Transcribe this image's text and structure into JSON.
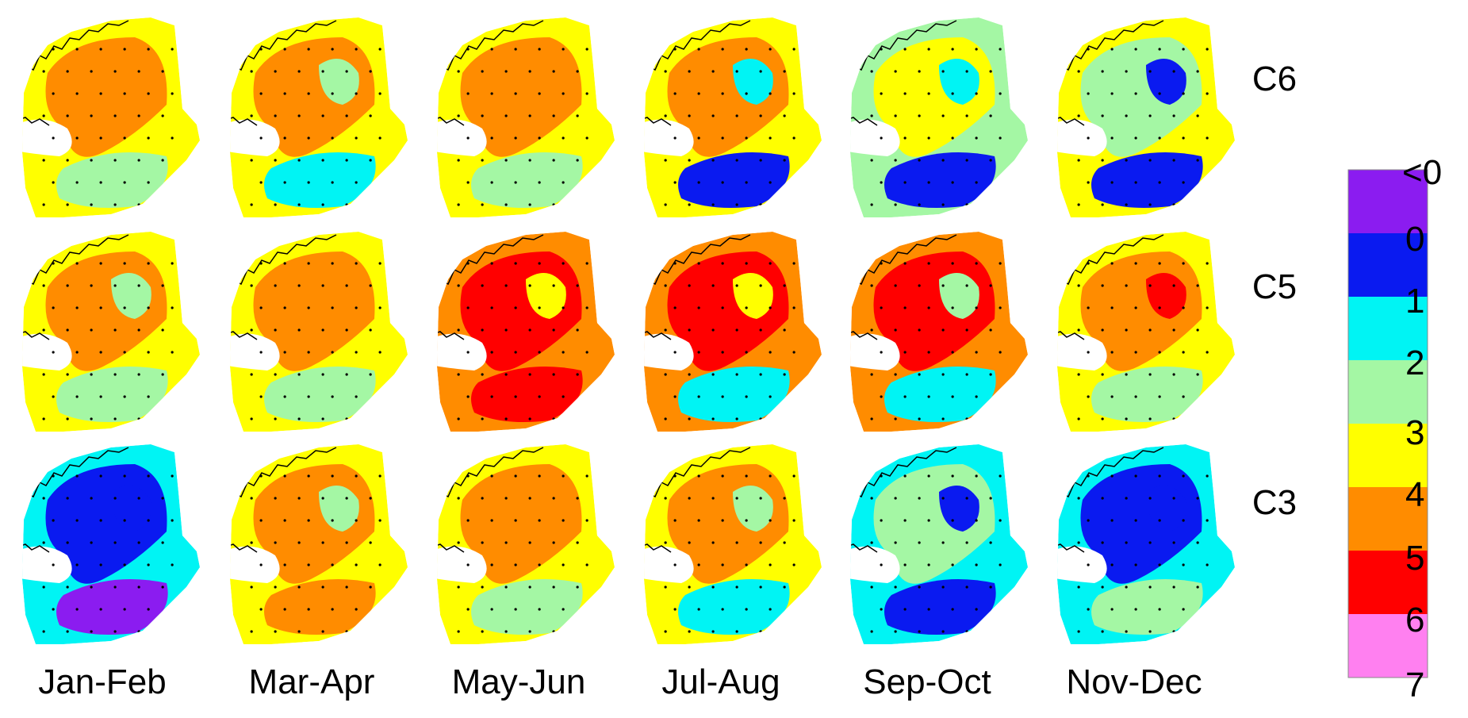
{
  "figure": {
    "columns": [
      "Jan-Feb",
      "Mar-Apr",
      "May-Jun",
      "Jul-Aug",
      "Sep-Oct",
      "Nov-Dec"
    ],
    "rows": [
      "C6",
      "C5",
      "C3"
    ]
  },
  "legend": {
    "tick_labels": [
      "<0",
      "0",
      "1",
      "2",
      "3",
      "4",
      "5",
      "6",
      "7"
    ],
    "bands": [
      {
        "label": "<0",
        "color": "#8b1cf0"
      },
      {
        "label": "0-1",
        "color": "#0a1af0"
      },
      {
        "label": "1-2",
        "color": "#00f4f4"
      },
      {
        "label": "2-3",
        "color": "#a4f7a4"
      },
      {
        "label": "3-4",
        "color": "#ffff00"
      },
      {
        "label": "4-5",
        "color": "#ff8c00"
      },
      {
        "label": "5-6",
        "color": "#ff0000"
      },
      {
        "label": "6-7",
        "color": "#ff80f0"
      }
    ]
  },
  "panels": [
    {
      "row": "C6",
      "column": "Jan-Feb",
      "base": "#ffff00",
      "patches": [
        "#ff8c00",
        "#ff8c00",
        "#a4f7a4",
        "#0a1af0"
      ]
    },
    {
      "row": "C6",
      "column": "Mar-Apr",
      "base": "#ffff00",
      "patches": [
        "#ff8c00",
        "#a4f7a4",
        "#00f4f4",
        "#ff8c00"
      ]
    },
    {
      "row": "C6",
      "column": "May-Jun",
      "base": "#ffff00",
      "patches": [
        "#ff8c00",
        "#ff8c00",
        "#a4f7a4",
        "#0a1af0"
      ]
    },
    {
      "row": "C6",
      "column": "Jul-Aug",
      "base": "#ffff00",
      "patches": [
        "#ff8c00",
        "#00f4f4",
        "#0a1af0",
        "#a4f7a4"
      ]
    },
    {
      "row": "C6",
      "column": "Sep-Oct",
      "base": "#a4f7a4",
      "patches": [
        "#ffff00",
        "#00f4f4",
        "#0a1af0",
        "#ffff00"
      ]
    },
    {
      "row": "C6",
      "column": "Nov-Dec",
      "base": "#ffff00",
      "patches": [
        "#a4f7a4",
        "#0a1af0",
        "#0a1af0",
        "#ff8c00"
      ]
    },
    {
      "row": "C5",
      "column": "Jan-Feb",
      "base": "#ffff00",
      "patches": [
        "#ff8c00",
        "#a4f7a4",
        "#a4f7a4",
        "#0a1af0"
      ]
    },
    {
      "row": "C5",
      "column": "Mar-Apr",
      "base": "#ffff00",
      "patches": [
        "#ff8c00",
        "#ff8c00",
        "#a4f7a4",
        "#ff8c00"
      ]
    },
    {
      "row": "C5",
      "column": "May-Jun",
      "base": "#ff8c00",
      "patches": [
        "#ff0000",
        "#ffff00",
        "#ff0000",
        "#ff8c00"
      ]
    },
    {
      "row": "C5",
      "column": "Jul-Aug",
      "base": "#ff8c00",
      "patches": [
        "#ff0000",
        "#ffff00",
        "#00f4f4",
        "#ff8c00"
      ]
    },
    {
      "row": "C5",
      "column": "Sep-Oct",
      "base": "#ff8c00",
      "patches": [
        "#ff0000",
        "#a4f7a4",
        "#00f4f4",
        "#ffff00"
      ]
    },
    {
      "row": "C5",
      "column": "Nov-Dec",
      "base": "#ffff00",
      "patches": [
        "#ff8c00",
        "#ff0000",
        "#a4f7a4",
        "#00f4f4"
      ]
    },
    {
      "row": "C3",
      "column": "Jan-Feb",
      "base": "#00f4f4",
      "patches": [
        "#0a1af0",
        "#0a1af0",
        "#8b1cf0",
        "#a4f7a4"
      ]
    },
    {
      "row": "C3",
      "column": "Mar-Apr",
      "base": "#ffff00",
      "patches": [
        "#ff8c00",
        "#a4f7a4",
        "#ff8c00",
        "#ff8c00"
      ]
    },
    {
      "row": "C3",
      "column": "May-Jun",
      "base": "#ffff00",
      "patches": [
        "#ff8c00",
        "#ff8c00",
        "#a4f7a4",
        "#ff8c00"
      ]
    },
    {
      "row": "C3",
      "column": "Jul-Aug",
      "base": "#ffff00",
      "patches": [
        "#ff8c00",
        "#a4f7a4",
        "#00f4f4",
        "#ff8c00"
      ]
    },
    {
      "row": "C3",
      "column": "Sep-Oct",
      "base": "#00f4f4",
      "patches": [
        "#a4f7a4",
        "#0a1af0",
        "#0a1af0",
        "#ff8c00"
      ]
    },
    {
      "row": "C3",
      "column": "Nov-Dec",
      "base": "#00f4f4",
      "patches": [
        "#0a1af0",
        "#0a1af0",
        "#a4f7a4",
        "#8b1cf0"
      ]
    }
  ]
}
